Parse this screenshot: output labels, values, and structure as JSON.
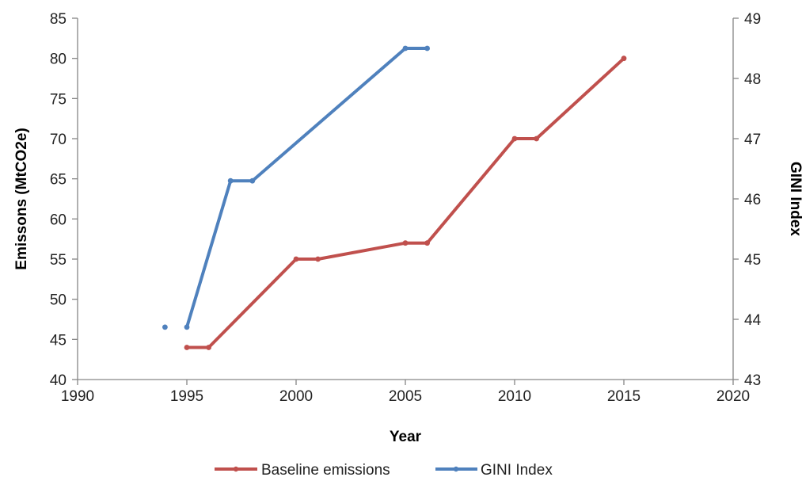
{
  "chart_data": {
    "type": "line",
    "title": "",
    "xlabel": "Year",
    "ylabel_left": "Emissons (MtCO2e)",
    "ylabel_right": "GINI Index",
    "xlim": [
      1990,
      2020
    ],
    "ylim_left": [
      40,
      85
    ],
    "ylim_right": [
      43,
      49
    ],
    "x_ticks": [
      1990,
      1995,
      2000,
      2005,
      2010,
      2015,
      2020
    ],
    "y_left_ticks": [
      40,
      45,
      50,
      55,
      60,
      65,
      70,
      75,
      80,
      85
    ],
    "y_right_ticks": [
      43,
      44,
      45,
      46,
      47,
      48,
      49
    ],
    "grid": false,
    "legend_position": "bottom",
    "series": [
      {
        "name": "Baseline emissions",
        "axis": "left",
        "color": "#c0504d",
        "segments": [
          [
            [
              1995,
              44
            ],
            [
              1996,
              44
            ],
            [
              2000,
              55
            ],
            [
              2001,
              55
            ],
            [
              2005,
              57
            ],
            [
              2006,
              57
            ],
            [
              2010,
              70
            ],
            [
              2011,
              70
            ],
            [
              2015,
              80
            ]
          ]
        ]
      },
      {
        "name": "GINI Index",
        "axis": "right",
        "color": "#4f81bd",
        "segments": [
          [
            [
              1994,
              43.87
            ]
          ],
          [
            [
              1995,
              43.87
            ],
            [
              1997,
              46.3
            ],
            [
              1998,
              46.3
            ],
            [
              2005,
              48.5
            ],
            [
              2006,
              48.5
            ]
          ]
        ]
      }
    ]
  }
}
